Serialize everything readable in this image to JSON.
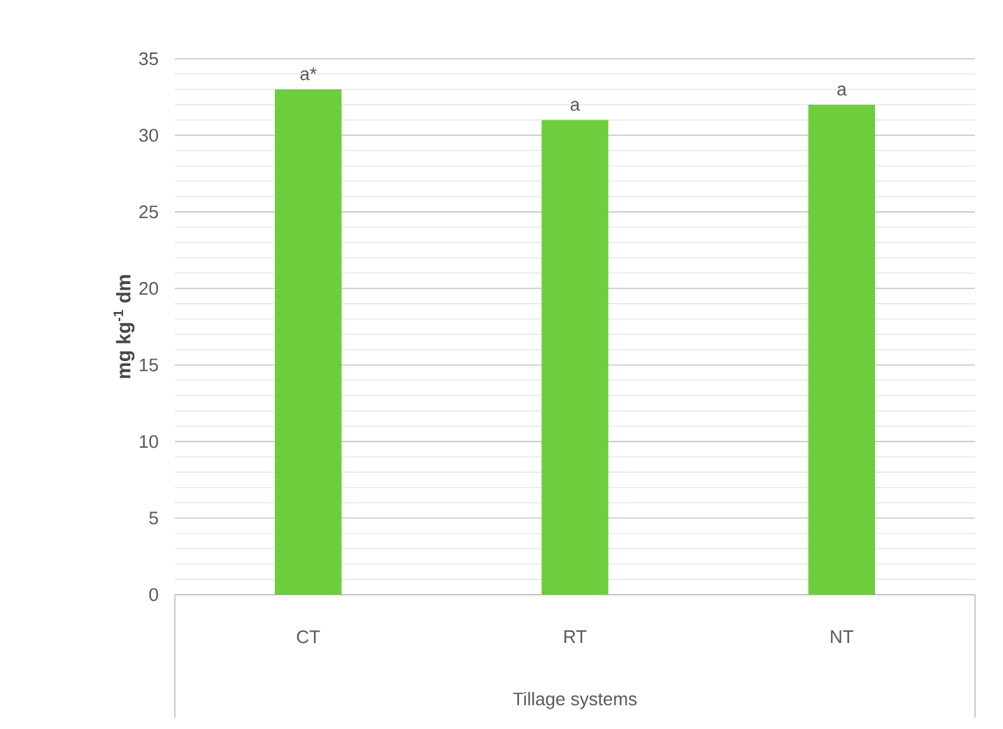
{
  "chart_data": {
    "type": "bar",
    "xlabel": "Tillage systems",
    "ylabel": "mg kg$^{-1}$ dm",
    "categories": [
      "CT",
      "RT",
      "NT"
    ],
    "values": [
      33,
      31,
      32
    ],
    "color": "#6dcd3c",
    "ylim": [
      0,
      35
    ],
    "yticks": [
      0,
      {
        "value": 1,
        "label": null
      },
      {
        "value": 2,
        "label": null
      },
      {
        "value": 3,
        "label": null
      },
      {
        "value": 4,
        "label": null
      },
      5,
      {
        "value": 6,
        "label": null
      },
      {
        "value": 7,
        "label": null
      },
      {
        "value": 8,
        "label": null
      },
      {
        "value": 9,
        "label": null
      },
      10,
      {
        "value": 11,
        "label": null
      },
      {
        "value": 12,
        "label": null
      },
      {
        "value": 13,
        "label": null
      },
      {
        "value": 14,
        "label": null
      },
      15,
      {
        "value": 16,
        "label": null
      },
      {
        "value": 17,
        "label": null
      },
      {
        "value": 18,
        "label": null
      },
      {
        "value": 19,
        "label": null
      },
      20,
      {
        "value": 21,
        "label": null
      },
      {
        "value": 22,
        "label": null
      },
      {
        "value": 23,
        "label": null
      },
      {
        "value": 24,
        "label": null
      },
      25,
      {
        "value": 26,
        "label": null
      },
      {
        "value": 27,
        "label": null
      },
      {
        "value": 28,
        "label": null
      },
      {
        "value": 29,
        "label": null
      },
      30,
      {
        "value": 31,
        "label": null
      },
      {
        "value": 32,
        "label": null
      },
      {
        "value": 33,
        "label": null
      },
      {
        "value": 34,
        "label": null
      },
      35
    ],
    "grid": "y",
    "annotations": [
      {
        "text": "a*",
        "x": "CT",
        "y": 33
      },
      {
        "text": "a",
        "x": "RT",
        "y": 31
      },
      {
        "text": "a",
        "x": "NT",
        "y": 32
      }
    ]
  }
}
